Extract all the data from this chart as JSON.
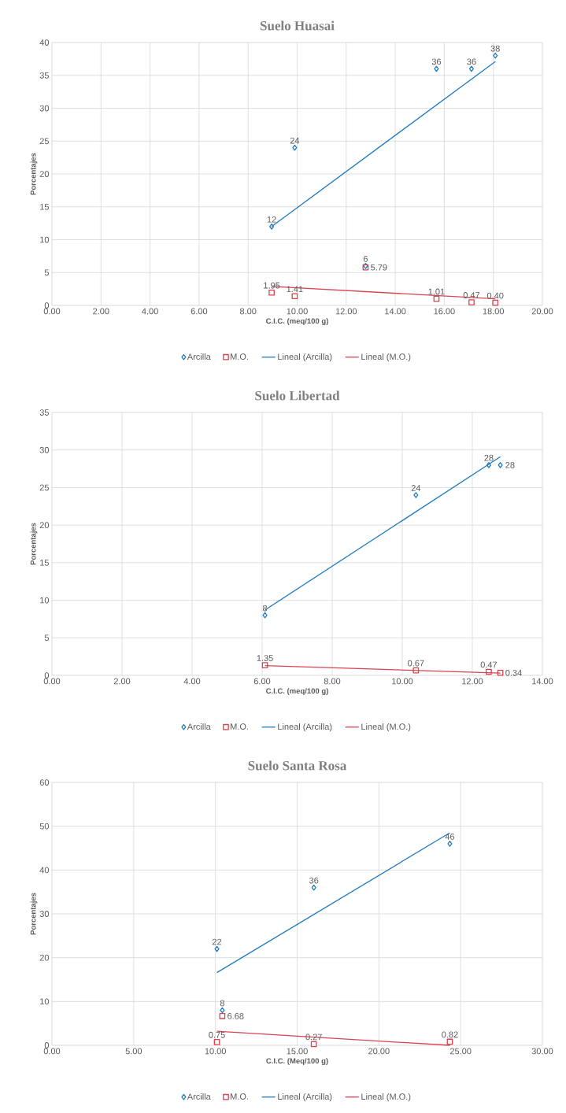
{
  "chart_data": [
    {
      "type": "scatter",
      "title": "Suelo Huasai",
      "xlabel": "C.I.C. (meq/100 g)",
      "ylabel": "Porcentajes",
      "xlim": [
        0,
        20
      ],
      "ylim": [
        0,
        40
      ],
      "xticks": [
        {
          "value": 0,
          "label": "0.00"
        },
        {
          "value": 2,
          "label": "2.00"
        },
        {
          "value": 4,
          "label": "4.00"
        },
        {
          "value": 6,
          "label": "6.00"
        },
        {
          "value": 8,
          "label": "8.00"
        },
        {
          "value": 10,
          "label": "10.00"
        },
        {
          "value": 12,
          "label": "12.00"
        },
        {
          "value": 14,
          "label": "14.00"
        },
        {
          "value": 16,
          "label": "16.00"
        },
        {
          "value": 18,
          "label": "18.00"
        },
        {
          "value": 20,
          "label": "20.00"
        }
      ],
      "yticks": [
        0,
        5,
        10,
        15,
        20,
        25,
        30,
        35,
        40
      ],
      "grid": true,
      "legend": "bottom",
      "series": [
        {
          "name": "Arcilla",
          "type": "scatter",
          "marker": "diamond",
          "color": "#1f7bbf",
          "x": [
            8.96,
            9.9,
            12.79,
            15.68,
            17.11,
            18.08
          ],
          "values": [
            12,
            24,
            6,
            36,
            36,
            38
          ],
          "value_labels": [
            "12",
            "24",
            "6",
            "36",
            "36",
            "38"
          ]
        },
        {
          "name": "M.O.",
          "type": "scatter",
          "marker": "square",
          "color": "#d9434f",
          "x": [
            8.96,
            9.9,
            12.79,
            15.68,
            17.11,
            18.08
          ],
          "values": [
            1.95,
            1.41,
            5.79,
            1.01,
            0.47,
            0.4
          ],
          "value_labels": [
            "1.95",
            "1.41",
            "5.79",
            "1.01",
            "0.47",
            "0.40"
          ]
        },
        {
          "name": "Lineal (Arcilla)",
          "type": "line",
          "color": "#1f7bbf",
          "x": [
            8.96,
            18.08
          ],
          "values": [
            12.0,
            37.1
          ]
        },
        {
          "name": "Lineal (M.O.)",
          "type": "line",
          "color": "#d9434f",
          "x": [
            8.96,
            18.08
          ],
          "values": [
            2.9,
            1.0
          ]
        }
      ]
    },
    {
      "type": "scatter",
      "title": "Suelo Libertad",
      "xlabel": "C.I.C. (meq/100 g)",
      "ylabel": "Porcentajes",
      "xlim": [
        0,
        14
      ],
      "ylim": [
        0,
        35
      ],
      "xticks": [
        {
          "value": 0,
          "label": "0.00"
        },
        {
          "value": 2,
          "label": "2.00"
        },
        {
          "value": 4,
          "label": "4.00"
        },
        {
          "value": 6,
          "label": "6.00"
        },
        {
          "value": 8,
          "label": "8.00"
        },
        {
          "value": 10,
          "label": "10.00"
        },
        {
          "value": 12,
          "label": "12.00"
        },
        {
          "value": 14,
          "label": "14.00"
        }
      ],
      "yticks": [
        0,
        5,
        10,
        15,
        20,
        25,
        30,
        35
      ],
      "grid": true,
      "legend": "bottom",
      "series": [
        {
          "name": "Arcilla",
          "type": "scatter",
          "marker": "diamond",
          "color": "#1f7bbf",
          "x": [
            6.08,
            10.39,
            12.47,
            12.8
          ],
          "values": [
            8,
            24,
            28,
            28
          ],
          "value_labels": [
            "8",
            "24",
            "28",
            "28"
          ]
        },
        {
          "name": "M.O.",
          "type": "scatter",
          "marker": "square",
          "color": "#d9434f",
          "x": [
            6.08,
            10.39,
            12.47,
            12.8
          ],
          "values": [
            1.35,
            0.67,
            0.47,
            0.34
          ],
          "value_labels": [
            "1.35",
            "0.67",
            "0.47",
            "0.34"
          ]
        },
        {
          "name": "Lineal (Arcilla)",
          "type": "line",
          "color": "#1f7bbf",
          "x": [
            6.08,
            12.8
          ],
          "values": [
            8.7,
            29.1
          ]
        },
        {
          "name": "Lineal (M.O.)",
          "type": "line",
          "color": "#d9434f",
          "x": [
            6.08,
            12.8
          ],
          "values": [
            1.3,
            0.3
          ]
        }
      ]
    },
    {
      "type": "scatter",
      "title": "Suelo Santa Rosa",
      "xlabel": "C.I.C. (Meq/100 g)",
      "ylabel": "Porcentajes",
      "xlim": [
        0,
        30
      ],
      "ylim": [
        0,
        60
      ],
      "xticks": [
        {
          "value": 0,
          "label": "0.00"
        },
        {
          "value": 5,
          "label": "5.00"
        },
        {
          "value": 10,
          "label": "10.00"
        },
        {
          "value": 15,
          "label": "15.00"
        },
        {
          "value": 20,
          "label": "20.00"
        },
        {
          "value": 25,
          "label": "25.00"
        },
        {
          "value": 30,
          "label": "30.00"
        }
      ],
      "yticks": [
        0,
        10,
        20,
        30,
        40,
        50,
        60
      ],
      "grid": true,
      "legend": "bottom",
      "series": [
        {
          "name": "Arcilla",
          "type": "scatter",
          "marker": "diamond",
          "color": "#1f7bbf",
          "x": [
            10.09,
            10.42,
            16.02,
            24.34
          ],
          "values": [
            22,
            8,
            36,
            46
          ],
          "value_labels": [
            "22",
            "8",
            "36",
            "46"
          ]
        },
        {
          "name": "M.O.",
          "type": "scatter",
          "marker": "square",
          "color": "#d9434f",
          "x": [
            10.09,
            10.42,
            16.02,
            24.34
          ],
          "values": [
            0.75,
            6.68,
            0.27,
            0.82
          ],
          "value_labels": [
            "0.75",
            "6.68",
            "0.27",
            "0.82"
          ]
        },
        {
          "name": "Lineal (Arcilla)",
          "type": "line",
          "color": "#1f7bbf",
          "x": [
            10.09,
            24.34
          ],
          "values": [
            16.6,
            48.5
          ]
        },
        {
          "name": "Lineal (M.O.)",
          "type": "line",
          "color": "#d9434f",
          "x": [
            10.09,
            24.34
          ],
          "values": [
            3.2,
            0.0
          ]
        }
      ]
    }
  ]
}
